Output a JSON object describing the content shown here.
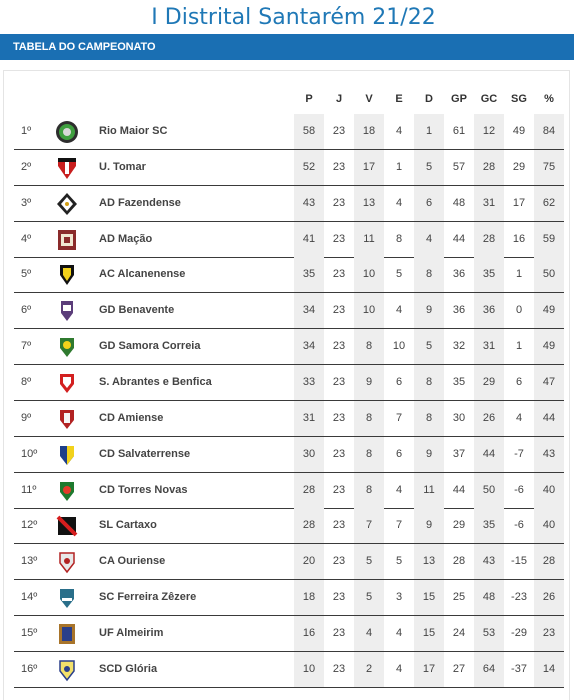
{
  "page": {
    "title": "I Distrital Santarém 21/22",
    "section": "TABELA DO CAMPEONATO"
  },
  "table": {
    "columns": [
      "P",
      "J",
      "V",
      "E",
      "D",
      "GP",
      "GC",
      "SG",
      "%"
    ],
    "rows": [
      {
        "pos": "1º",
        "team": "Rio Maior SC",
        "P": "58",
        "J": "23",
        "V": "18",
        "E": "4",
        "D": "1",
        "GP": "61",
        "GC": "12",
        "SG": "49",
        "pct": "84",
        "logo": "rio-maior-crest-icon"
      },
      {
        "pos": "2º",
        "team": "U. Tomar",
        "P": "52",
        "J": "23",
        "V": "17",
        "E": "1",
        "D": "5",
        "GP": "57",
        "GC": "28",
        "SG": "29",
        "pct": "75",
        "logo": "tomar-crest-icon"
      },
      {
        "pos": "3º",
        "team": "AD Fazendense",
        "P": "43",
        "J": "23",
        "V": "13",
        "E": "4",
        "D": "6",
        "GP": "48",
        "GC": "31",
        "SG": "17",
        "pct": "62",
        "logo": "fazendense-crest-icon"
      },
      {
        "pos": "4º",
        "team": "AD Mação",
        "P": "41",
        "J": "23",
        "V": "11",
        "E": "8",
        "D": "4",
        "GP": "44",
        "GC": "28",
        "SG": "16",
        "pct": "59",
        "logo": "macao-crest-icon"
      },
      {
        "pos": "5º",
        "team": "AC Alcanenense",
        "P": "35",
        "J": "23",
        "V": "10",
        "E": "5",
        "D": "8",
        "GP": "36",
        "GC": "35",
        "SG": "1",
        "pct": "50",
        "logo": "alcanenense-crest-icon"
      },
      {
        "pos": "6º",
        "team": "GD Benavente",
        "P": "34",
        "J": "23",
        "V": "10",
        "E": "4",
        "D": "9",
        "GP": "36",
        "GC": "36",
        "SG": "0",
        "pct": "49",
        "logo": "benavente-crest-icon"
      },
      {
        "pos": "7º",
        "team": "GD Samora Correia",
        "P": "34",
        "J": "23",
        "V": "8",
        "E": "10",
        "D": "5",
        "GP": "32",
        "GC": "31",
        "SG": "1",
        "pct": "49",
        "logo": "samora-crest-icon"
      },
      {
        "pos": "8º",
        "team": "S. Abrantes e Benfica",
        "P": "33",
        "J": "23",
        "V": "9",
        "E": "6",
        "D": "8",
        "GP": "35",
        "GC": "29",
        "SG": "6",
        "pct": "47",
        "logo": "abrantes-crest-icon"
      },
      {
        "pos": "9º",
        "team": "CD Amiense",
        "P": "31",
        "J": "23",
        "V": "8",
        "E": "7",
        "D": "8",
        "GP": "30",
        "GC": "26",
        "SG": "4",
        "pct": "44",
        "logo": "amiense-crest-icon"
      },
      {
        "pos": "10º",
        "team": "CD Salvaterrense",
        "P": "30",
        "J": "23",
        "V": "8",
        "E": "6",
        "D": "9",
        "GP": "37",
        "GC": "44",
        "SG": "-7",
        "pct": "43",
        "logo": "salvaterrense-crest-icon"
      },
      {
        "pos": "11º",
        "team": "CD Torres Novas",
        "P": "28",
        "J": "23",
        "V": "8",
        "E": "4",
        "D": "11",
        "GP": "44",
        "GC": "50",
        "SG": "-6",
        "pct": "40",
        "logo": "torres-novas-crest-icon"
      },
      {
        "pos": "12º",
        "team": "SL Cartaxo",
        "P": "28",
        "J": "23",
        "V": "7",
        "E": "7",
        "D": "9",
        "GP": "29",
        "GC": "35",
        "SG": "-6",
        "pct": "40",
        "logo": "cartaxo-crest-icon"
      },
      {
        "pos": "13º",
        "team": "CA Ouriense",
        "P": "20",
        "J": "23",
        "V": "5",
        "E": "5",
        "D": "13",
        "GP": "28",
        "GC": "43",
        "SG": "-15",
        "pct": "28",
        "logo": "ouriense-crest-icon"
      },
      {
        "pos": "14º",
        "team": "SC Ferreira Zêzere",
        "P": "18",
        "J": "23",
        "V": "5",
        "E": "3",
        "D": "15",
        "GP": "25",
        "GC": "48",
        "SG": "-23",
        "pct": "26",
        "logo": "ferreira-zezere-crest-icon"
      },
      {
        "pos": "15º",
        "team": "UF Almeirim",
        "P": "16",
        "J": "23",
        "V": "4",
        "E": "4",
        "D": "15",
        "GP": "24",
        "GC": "53",
        "SG": "-29",
        "pct": "23",
        "logo": "almeirim-crest-icon"
      },
      {
        "pos": "16º",
        "team": "SCD Glória",
        "P": "10",
        "J": "23",
        "V": "2",
        "E": "4",
        "D": "17",
        "GP": "27",
        "GC": "64",
        "SG": "-37",
        "pct": "14",
        "logo": "gloria-crest-icon"
      }
    ]
  },
  "colors": {
    "title": "#1f78b6",
    "banner": "#1a6fb3",
    "shade": "#eeeeee",
    "row_border": "#3a3a3a"
  }
}
